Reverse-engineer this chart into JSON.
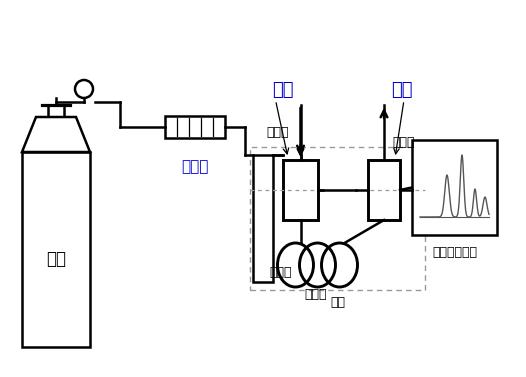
{
  "bg_color": "#ffffff",
  "line_color": "#000000",
  "blue_color": "#0000cc",
  "labels": {
    "carrier_gas": "载气",
    "purifier": "净化器",
    "vaporizer": "汽化室",
    "flowmeter": "流量计",
    "injection": "进样",
    "vent": "放空",
    "detector": "检测器",
    "column": "色谱柱",
    "column_box": "柱筱",
    "computer": "计算机工作站"
  },
  "figsize": [
    5.26,
    3.77
  ],
  "dpi": 100
}
